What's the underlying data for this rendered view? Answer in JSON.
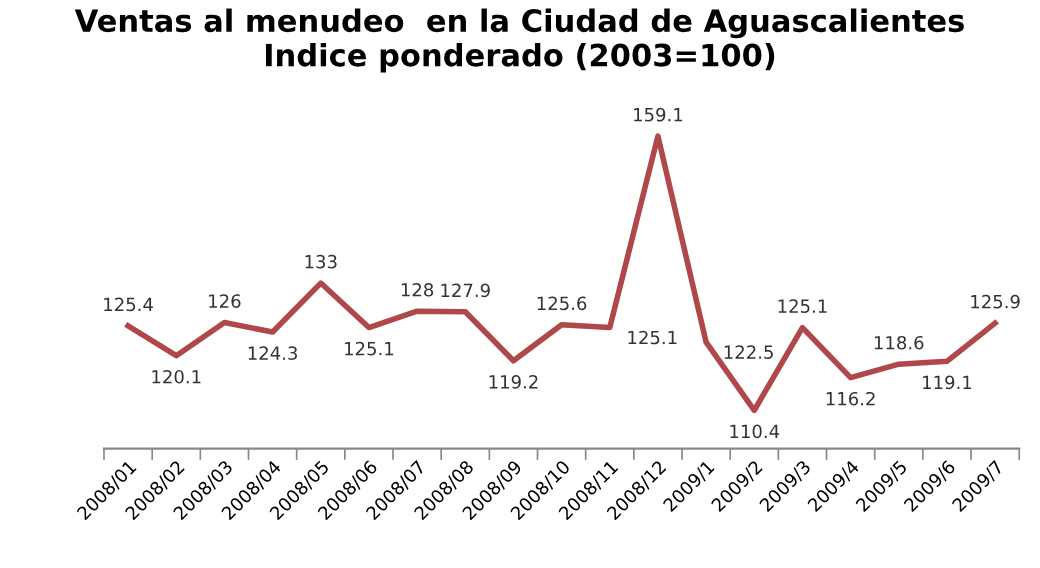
{
  "chart_data": {
    "type": "line",
    "title": "Ventas al menudeo  en la Ciudad de Aguascalientes\nIndice ponderado (2003=100)",
    "categories": [
      "2008/01",
      "2008/02",
      "2008/03",
      "2008/04",
      "2008/05",
      "2008/06",
      "2008/07",
      "2008/08",
      "2008/09",
      "2008/10",
      "2008/11",
      "2008/12",
      "2009/1",
      "2009/2",
      "2009/3",
      "2009/4",
      "2009/5",
      "2009/6",
      "2009/7"
    ],
    "series": [
      {
        "color": "#b0474a",
        "values": [
          125.4,
          120.1,
          126,
          124.3,
          133,
          125.1,
          128,
          127.9,
          119.2,
          125.6,
          125.1,
          159.1,
          122.5,
          110.4,
          125.1,
          116.2,
          118.6,
          119.1,
          125.9
        ]
      }
    ],
    "data_labels": true,
    "marker": "none",
    "line_style": "solid",
    "grid": false,
    "legend": false,
    "tick_labels": "x"
  }
}
